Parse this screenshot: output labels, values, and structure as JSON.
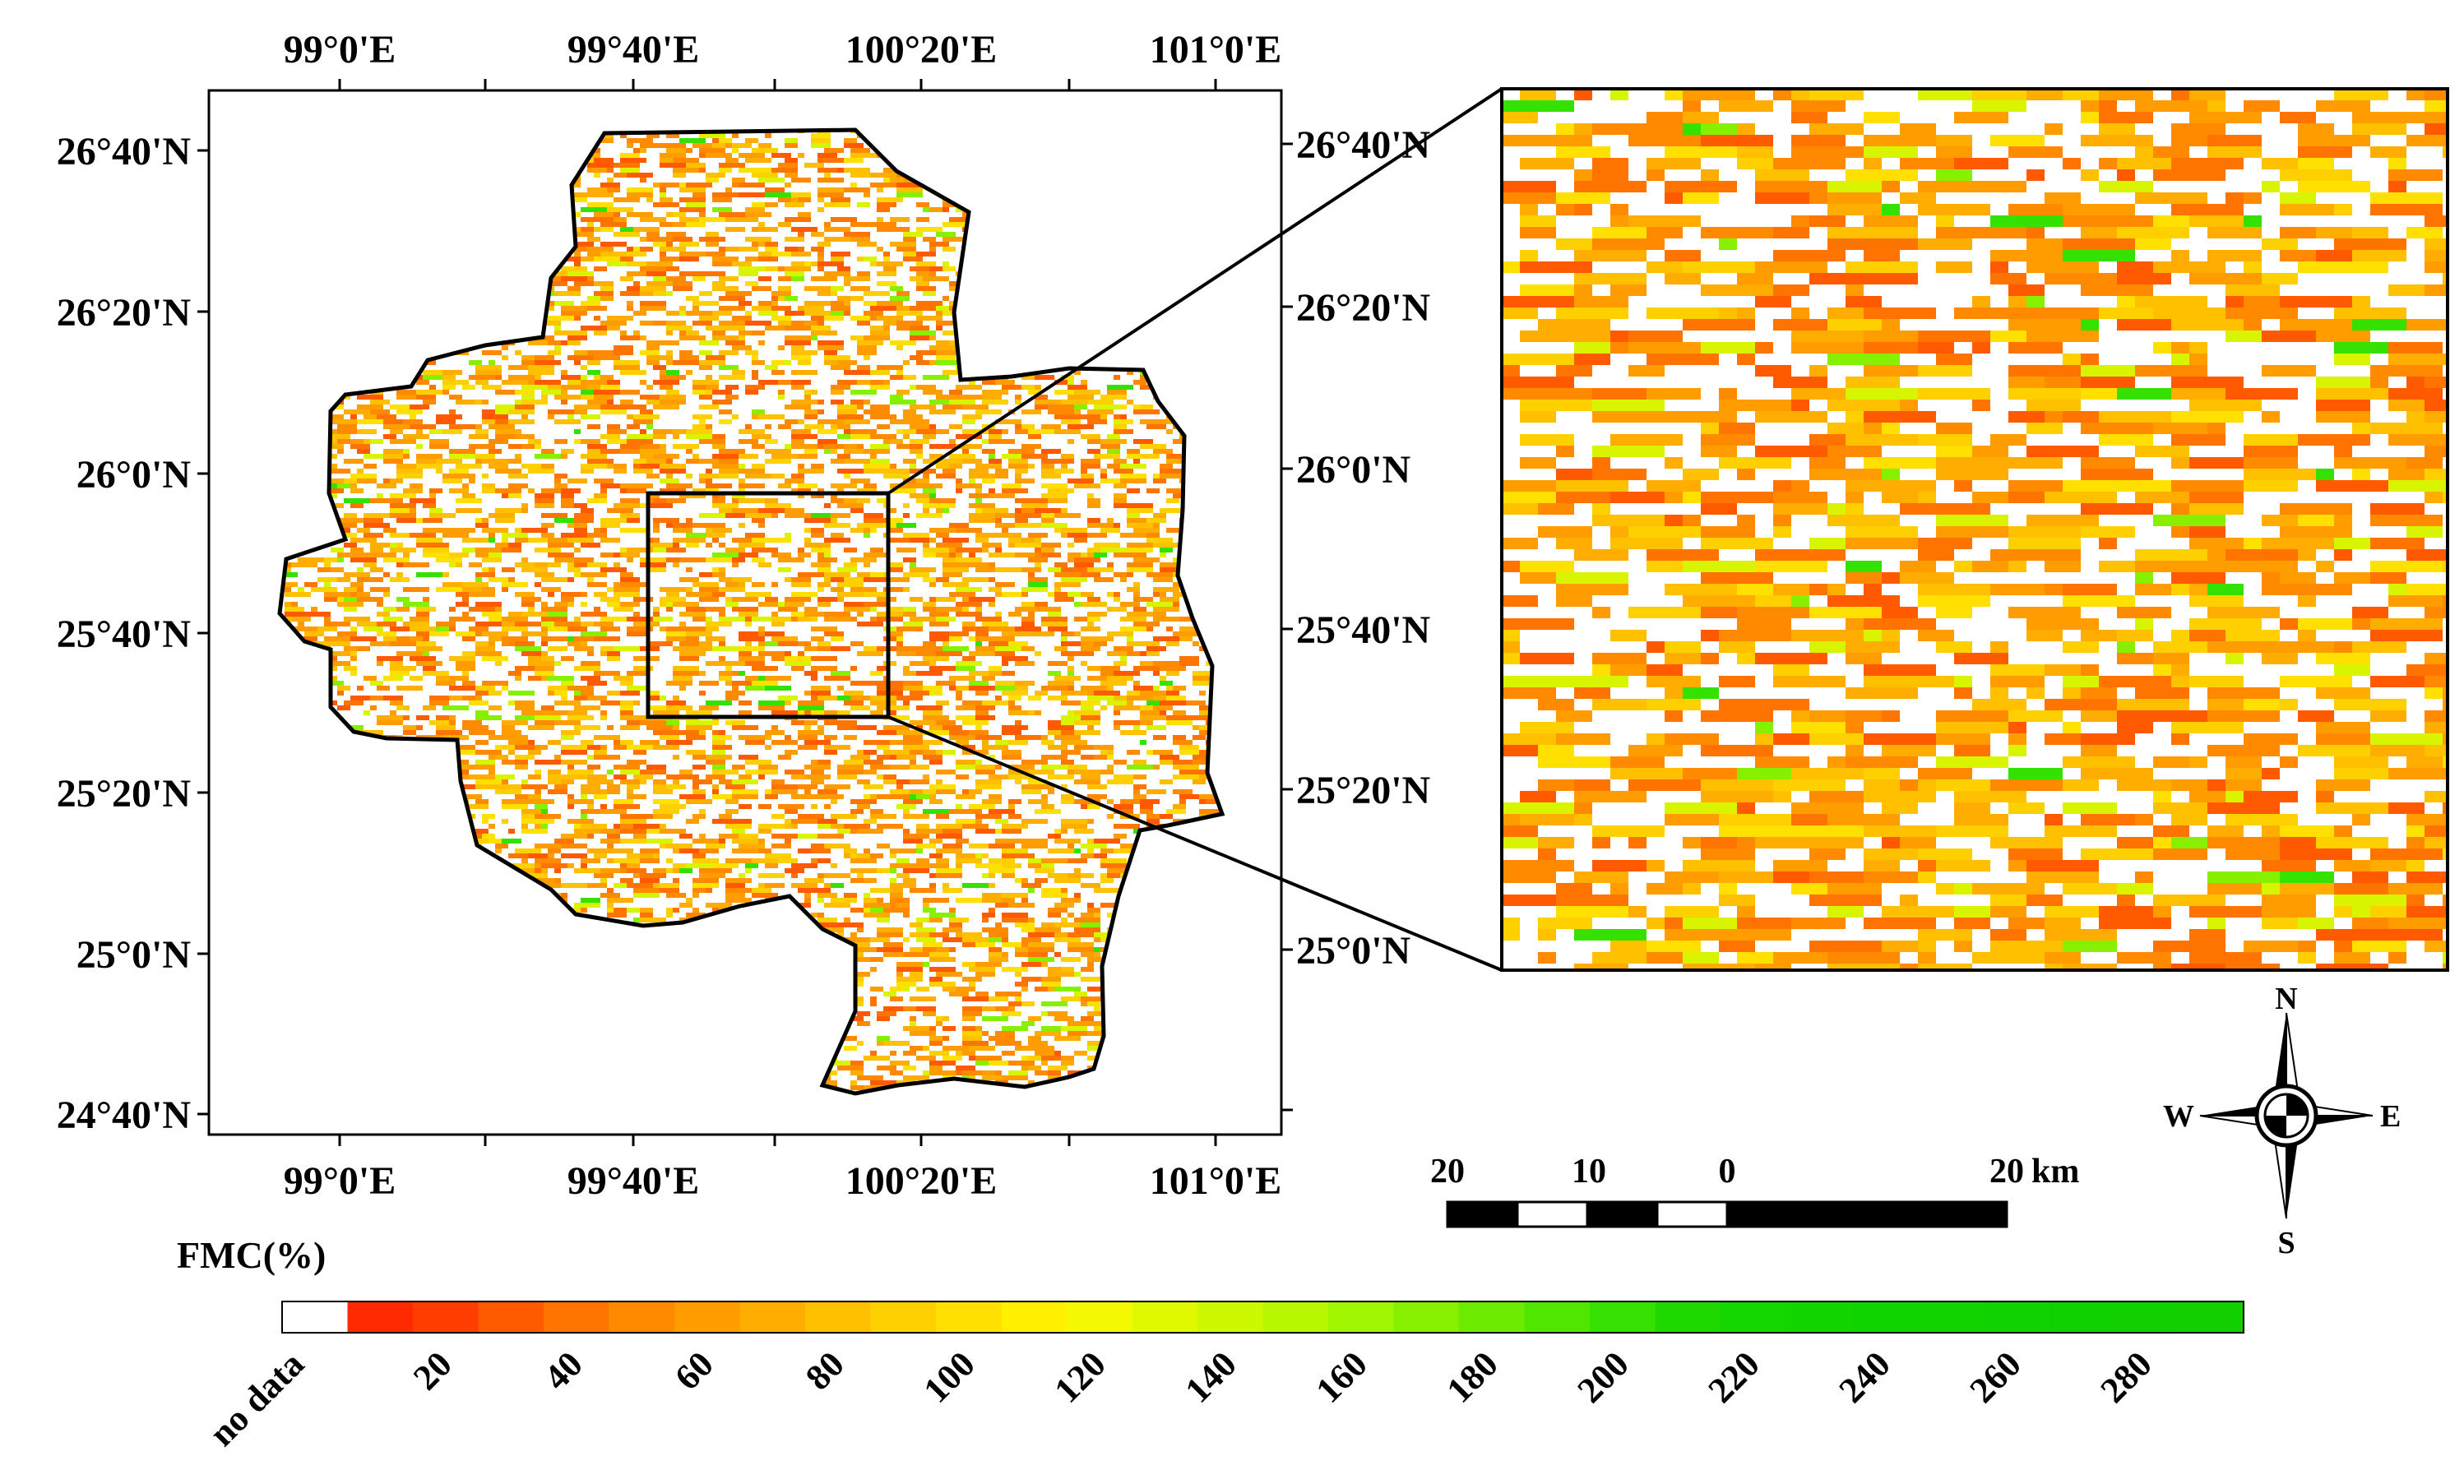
{
  "main_map": {
    "top_longitudes": [
      "99°0'E",
      "99°40'E",
      "100°20'E",
      "101°0'E"
    ],
    "bottom_longitudes": [
      "99°0'E",
      "99°40'E",
      "100°20'E",
      "101°0'E"
    ],
    "left_latitudes": [
      "26°40'N",
      "26°20'N",
      "26°0'N",
      "25°40'N",
      "25°20'N",
      "25°0'N",
      "24°40'N"
    ],
    "right_latitudes": [
      "26°40'N",
      "26°20'N",
      "26°0'N",
      "25°40'N",
      "25°20'N",
      "25°0'N"
    ]
  },
  "scale_bar": {
    "labels": [
      "20",
      "10",
      "0",
      "20"
    ],
    "unit": "km"
  },
  "north_arrow": {
    "n": "N",
    "s": "S",
    "e": "E",
    "w": "W"
  },
  "legend": {
    "title": "FMC(%)",
    "no_data": "no data",
    "labels": [
      "20",
      "40",
      "60",
      "80",
      "100",
      "120",
      "140",
      "160",
      "180",
      "200",
      "220",
      "240",
      "260",
      "280"
    ],
    "colors": [
      "#ffffff",
      "#ff2a00",
      "#ff3d00",
      "#ff5a00",
      "#ff7400",
      "#ff8a00",
      "#ff9c00",
      "#ffad00",
      "#ffc000",
      "#ffd000",
      "#ffe000",
      "#fff000",
      "#f4f800",
      "#e1f900",
      "#cdf900",
      "#b7f800",
      "#a0f500",
      "#86f000",
      "#6ceb00",
      "#50e600",
      "#35e100",
      "#1ed800",
      "#14d600",
      "#12d500",
      "#10d400",
      "#10d300",
      "#10d200",
      "#10d100",
      "#11d000",
      "#12cf00"
    ]
  }
}
